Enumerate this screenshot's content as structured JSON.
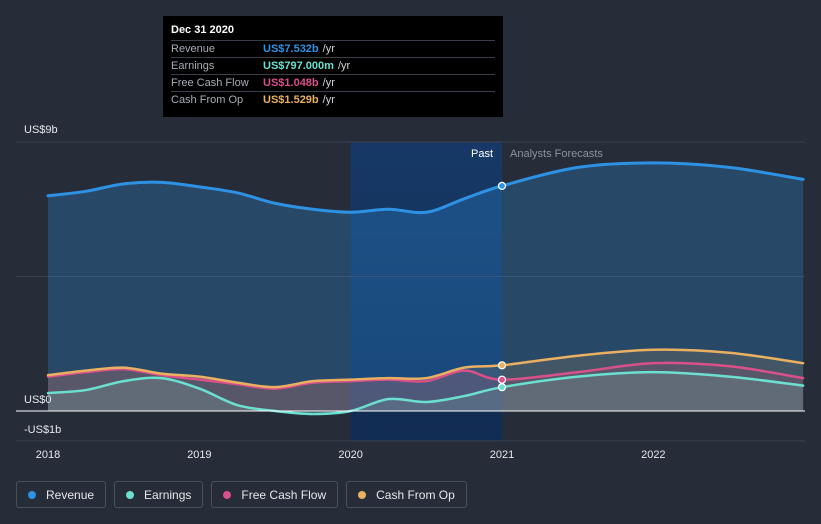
{
  "tooltip": {
    "date": "Dec 31 2020",
    "rows": [
      {
        "label": "Revenue",
        "value": "US$7.532b",
        "unit": "/yr",
        "color": "#2e92e4"
      },
      {
        "label": "Earnings",
        "value": "US$797.000m",
        "unit": "/yr",
        "color": "#6ce0d0"
      },
      {
        "label": "Free Cash Flow",
        "value": "US$1.048b",
        "unit": "/yr",
        "color": "#d9508a"
      },
      {
        "label": "Cash From Op",
        "value": "US$1.529b",
        "unit": "/yr",
        "color": "#e9b062"
      }
    ]
  },
  "legend": [
    {
      "label": "Revenue",
      "color": "#2e92e4"
    },
    {
      "label": "Earnings",
      "color": "#6ce0d0"
    },
    {
      "label": "Free Cash Flow",
      "color": "#d9508a"
    },
    {
      "label": "Cash From Op",
      "color": "#e9b062"
    }
  ],
  "chart_data": {
    "type": "area",
    "y_unit": "US$ billions",
    "ylim": [
      -1,
      9
    ],
    "y_tick_labels": [
      {
        "value": 9,
        "label": "US$9b"
      },
      {
        "value": 0,
        "label": "US$0"
      },
      {
        "value": -1,
        "label": "-US$1b"
      }
    ],
    "x_tick_labels": [
      {
        "value": 2018,
        "label": "2018"
      },
      {
        "value": 2019,
        "label": "2019"
      },
      {
        "value": 2020,
        "label": "2020"
      },
      {
        "value": 2021,
        "label": "2021"
      },
      {
        "value": 2022,
        "label": "2022"
      }
    ],
    "xlim": [
      2017.89,
      2022.99
    ],
    "past_label": "Past",
    "forecast_label": "Analysts Forecasts",
    "past_end": 2021.0,
    "highlight_start": 2020.0,
    "series": [
      {
        "name": "Revenue",
        "color": "#2e92e4",
        "points": [
          [
            2018.0,
            7.2
          ],
          [
            2018.25,
            7.35
          ],
          [
            2018.5,
            7.6
          ],
          [
            2018.75,
            7.65
          ],
          [
            2019.0,
            7.5
          ],
          [
            2019.25,
            7.3
          ],
          [
            2019.5,
            6.95
          ],
          [
            2019.75,
            6.75
          ],
          [
            2020.0,
            6.65
          ],
          [
            2020.25,
            6.75
          ],
          [
            2020.5,
            6.65
          ],
          [
            2020.75,
            7.1
          ],
          [
            2021.0,
            7.532
          ],
          [
            2021.5,
            8.15
          ],
          [
            2022.0,
            8.3
          ],
          [
            2022.5,
            8.15
          ],
          [
            2022.99,
            7.75
          ]
        ]
      },
      {
        "name": "Earnings",
        "color": "#6ce0d0",
        "points": [
          [
            2018.0,
            0.6
          ],
          [
            2018.25,
            0.7
          ],
          [
            2018.5,
            1.0
          ],
          [
            2018.75,
            1.1
          ],
          [
            2019.0,
            0.75
          ],
          [
            2019.25,
            0.2
          ],
          [
            2019.5,
            0.0
          ],
          [
            2019.75,
            -0.1
          ],
          [
            2020.0,
            0.0
          ],
          [
            2020.25,
            0.4
          ],
          [
            2020.5,
            0.3
          ],
          [
            2020.75,
            0.5
          ],
          [
            2021.0,
            0.797
          ],
          [
            2021.5,
            1.15
          ],
          [
            2022.0,
            1.3
          ],
          [
            2022.5,
            1.15
          ],
          [
            2022.99,
            0.85
          ]
        ]
      },
      {
        "name": "Free Cash Flow",
        "color": "#d9508a",
        "points": [
          [
            2018.0,
            1.15
          ],
          [
            2018.25,
            1.3
          ],
          [
            2018.5,
            1.4
          ],
          [
            2018.75,
            1.2
          ],
          [
            2019.0,
            1.05
          ],
          [
            2019.25,
            0.9
          ],
          [
            2019.5,
            0.75
          ],
          [
            2019.75,
            0.95
          ],
          [
            2020.0,
            1.0
          ],
          [
            2020.25,
            1.05
          ],
          [
            2020.5,
            1.0
          ],
          [
            2020.75,
            1.35
          ],
          [
            2021.0,
            1.048
          ],
          [
            2021.5,
            1.3
          ],
          [
            2022.0,
            1.6
          ],
          [
            2022.5,
            1.5
          ],
          [
            2022.99,
            1.1
          ]
        ]
      },
      {
        "name": "Cash From Op",
        "color": "#e9b062",
        "points": [
          [
            2018.0,
            1.2
          ],
          [
            2018.25,
            1.35
          ],
          [
            2018.5,
            1.45
          ],
          [
            2018.75,
            1.25
          ],
          [
            2019.0,
            1.15
          ],
          [
            2019.25,
            0.95
          ],
          [
            2019.5,
            0.8
          ],
          [
            2019.75,
            1.0
          ],
          [
            2020.0,
            1.05
          ],
          [
            2020.25,
            1.1
          ],
          [
            2020.5,
            1.1
          ],
          [
            2020.75,
            1.45
          ],
          [
            2021.0,
            1.529
          ],
          [
            2021.5,
            1.85
          ],
          [
            2022.0,
            2.05
          ],
          [
            2022.5,
            1.95
          ],
          [
            2022.99,
            1.6
          ]
        ]
      }
    ]
  }
}
